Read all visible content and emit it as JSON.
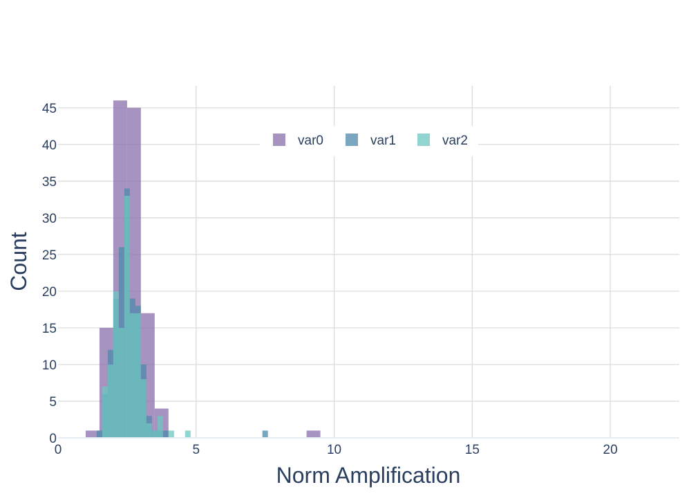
{
  "chart_data": {
    "type": "bar",
    "subtype": "overlaid-histogram",
    "title": "",
    "xlabel": "Norm Amplification",
    "ylabel": "Count",
    "xlim": [
      0,
      22.5
    ],
    "ylim": [
      0,
      48
    ],
    "x_ticks": [
      0,
      5,
      10,
      15,
      20
    ],
    "y_ticks": [
      0,
      5,
      10,
      15,
      20,
      25,
      30,
      35,
      40,
      45
    ],
    "grid": true,
    "legend_position": "top-center",
    "series": [
      {
        "name": "var0",
        "color": "#8a6fab",
        "bin_width": 0.5,
        "bins": [
          {
            "x0": 1.0,
            "count": 1
          },
          {
            "x0": 1.5,
            "count": 15
          },
          {
            "x0": 2.0,
            "count": 46
          },
          {
            "x0": 2.5,
            "count": 45
          },
          {
            "x0": 3.0,
            "count": 17
          },
          {
            "x0": 3.5,
            "count": 4
          },
          {
            "x0": 9.0,
            "count": 1
          }
        ]
      },
      {
        "name": "var1",
        "color": "#4f88ab",
        "bin_width": 0.2,
        "bins": [
          {
            "x0": 1.4,
            "count": 1
          },
          {
            "x0": 1.6,
            "count": 6
          },
          {
            "x0": 1.8,
            "count": 12
          },
          {
            "x0": 2.0,
            "count": 19
          },
          {
            "x0": 2.2,
            "count": 26
          },
          {
            "x0": 2.4,
            "count": 34
          },
          {
            "x0": 2.6,
            "count": 19
          },
          {
            "x0": 2.8,
            "count": 18
          },
          {
            "x0": 3.0,
            "count": 10
          },
          {
            "x0": 3.2,
            "count": 3
          },
          {
            "x0": 3.4,
            "count": 1
          },
          {
            "x0": 3.6,
            "count": 1
          },
          {
            "x0": 3.8,
            "count": 1
          },
          {
            "x0": 7.4,
            "count": 1
          }
        ]
      },
      {
        "name": "var2",
        "color": "#6ec5c0",
        "bin_width": 0.2,
        "bins": [
          {
            "x0": 1.6,
            "count": 7
          },
          {
            "x0": 1.8,
            "count": 10
          },
          {
            "x0": 2.0,
            "count": 20
          },
          {
            "x0": 2.2,
            "count": 15
          },
          {
            "x0": 2.4,
            "count": 33
          },
          {
            "x0": 2.6,
            "count": 17
          },
          {
            "x0": 2.8,
            "count": 17
          },
          {
            "x0": 3.0,
            "count": 8
          },
          {
            "x0": 3.2,
            "count": 2
          },
          {
            "x0": 3.4,
            "count": 1
          },
          {
            "x0": 3.6,
            "count": 3
          },
          {
            "x0": 4.0,
            "count": 1
          },
          {
            "x0": 4.6,
            "count": 1
          }
        ]
      }
    ]
  }
}
